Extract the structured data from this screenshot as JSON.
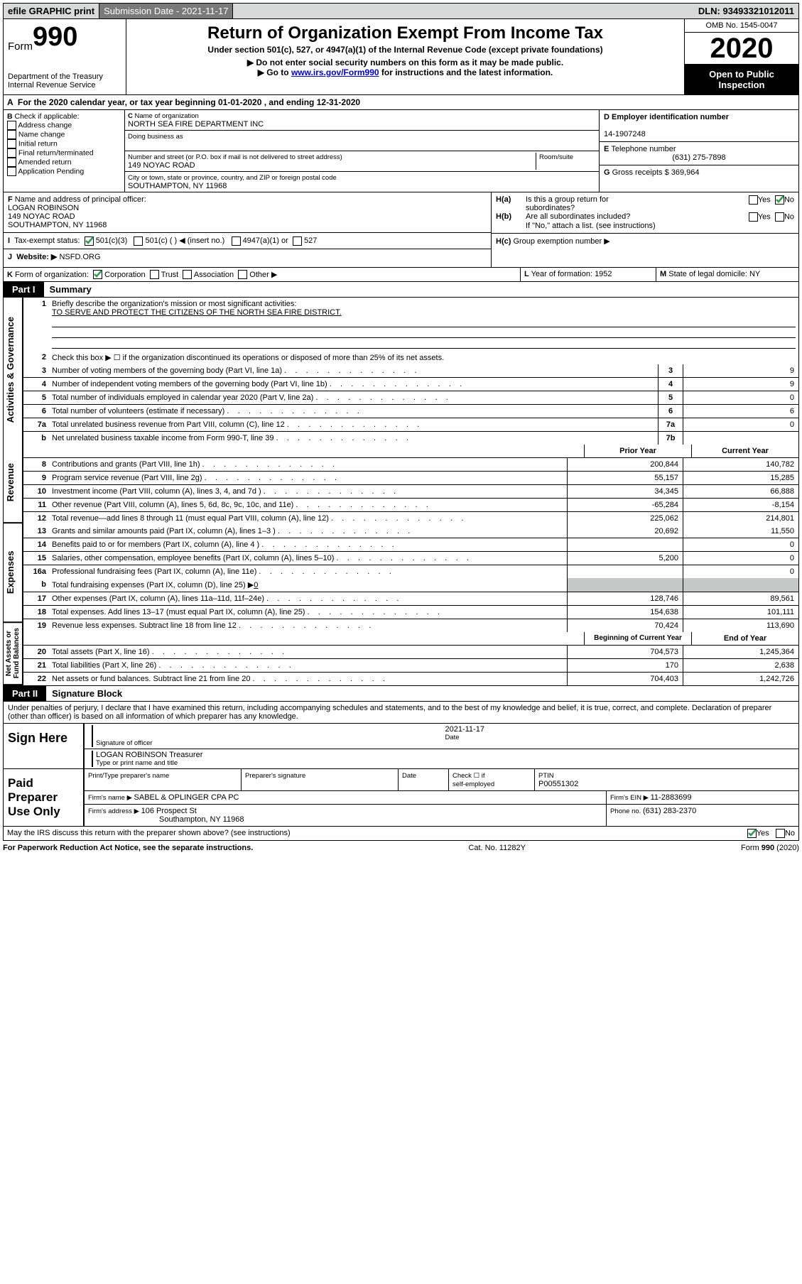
{
  "top": {
    "efile": "efile GRAPHIC print",
    "subdate_lbl": "Submission Date - ",
    "subdate": "2021-11-17",
    "dln_lbl": "DLN: ",
    "dln": "93493321012011"
  },
  "header": {
    "form_word": "Form",
    "form_num": "990",
    "dept": "Department of the Treasury",
    "irs": "Internal Revenue Service",
    "title": "Return of Organization Exempt From Income Tax",
    "sub": "Under section 501(c), 527, or 4947(a)(1) of the Internal Revenue Code (except private foundations)",
    "note1": "Do not enter social security numbers on this form as it may be made public.",
    "note2_a": "Go to ",
    "note2_link": "www.irs.gov/Form990",
    "note2_b": " for instructions and the latest information.",
    "omb": "OMB No. 1545-0047",
    "year": "2020",
    "open1": "Open to Public",
    "open2": "Inspection"
  },
  "A": "For the 2020 calendar year, or tax year beginning 01-01-2020    , and ending 12-31-2020",
  "B": {
    "lbl": "Check if applicable:",
    "opts": [
      "Address change",
      "Name change",
      "Initial return",
      "Final return/terminated",
      "Amended return",
      "Application Pending"
    ]
  },
  "C": {
    "name_lbl": "Name of organization",
    "name": "NORTH SEA FIRE DEPARTMENT INC",
    "dba_lbl": "Doing business as",
    "addr_lbl": "Number and street (or P.O. box if mail is not delivered to street address)",
    "room_lbl": "Room/suite",
    "addr": "149 NOYAC ROAD",
    "city_lbl": "City or town, state or province, country, and ZIP or foreign postal code",
    "city": "SOUTHAMPTON, NY  11968"
  },
  "D": {
    "lbl": "Employer identification number",
    "val": "14-1907248"
  },
  "E": {
    "lbl": "Telephone number",
    "val": "(631) 275-7898"
  },
  "G": {
    "lbl": "Gross receipts $ ",
    "val": "369,964"
  },
  "F": {
    "lbl": "Name and address of principal officer:",
    "name": "LOGAN ROBINSON",
    "street": "149 NOYAC ROAD",
    "city": "SOUTHAMPTON, NY  11968"
  },
  "tax_status_lbl": "Tax-exempt status:",
  "tax_status_501c3": "501(c)(3)",
  "tax_status_501c": "501(c) (  ) ",
  "tax_status_insert": "(insert no.)",
  "tax_status_4947": "4947(a)(1) or",
  "tax_status_527": "527",
  "Ha_lbl": "Is this a group return for",
  "Ha_lbl2": "subordinates?",
  "Hb_lbl": "Are all subordinates included?",
  "H_note": "If \"No,\" attach a list. (see instructions)",
  "Hc_lbl": "Group exemption number ▶",
  "J_lbl": "Website: ▶",
  "J_val": "NSFD.ORG",
  "K_lbl": "Form of organization:",
  "K_opts": [
    "Corporation",
    "Trust",
    "Association",
    "Other ▶"
  ],
  "L_lbl": "Year of formation: ",
  "L_val": "1952",
  "M_lbl": "State of legal domicile: ",
  "M_val": "NY",
  "part1": {
    "tab": "Part I",
    "title": "Summary"
  },
  "sections": {
    "gov": "Activities & Governance",
    "rev": "Revenue",
    "exp": "Expenses",
    "net": "Net Assets or Fund Balances"
  },
  "s1_lbl": "Briefly describe the organization's mission or most significant activities:",
  "s1_val": "TO SERVE AND PROTECT THE CITIZENS OF THE NORTH SEA FIRE DISTRICT.",
  "s2_lbl": "Check this box ▶ ☐  if the organization discontinued its operations or disposed of more than 25% of its net assets.",
  "rows_simple": [
    {
      "n": "3",
      "t": "Number of voting members of the governing body (Part VI, line 1a)",
      "c": "3",
      "v": "9"
    },
    {
      "n": "4",
      "t": "Number of independent voting members of the governing body (Part VI, line 1b)",
      "c": "4",
      "v": "9"
    },
    {
      "n": "5",
      "t": "Total number of individuals employed in calendar year 2020 (Part V, line 2a)",
      "c": "5",
      "v": "0"
    },
    {
      "n": "6",
      "t": "Total number of volunteers (estimate if necessary)",
      "c": "6",
      "v": "6"
    },
    {
      "n": "7a",
      "t": "Total unrelated business revenue from Part VIII, column (C), line 12",
      "c": "7a",
      "v": "0"
    },
    {
      "n": "b",
      "t": "Net unrelated business taxable income from Form 990-T, line 39",
      "c": "7b",
      "v": ""
    }
  ],
  "yearhdr": {
    "prior": "Prior Year",
    "curr": "Current Year"
  },
  "rev_rows": [
    {
      "n": "8",
      "t": "Contributions and grants (Part VIII, line 1h)",
      "p": "200,844",
      "c": "140,782"
    },
    {
      "n": "9",
      "t": "Program service revenue (Part VIII, line 2g)",
      "p": "55,157",
      "c": "15,285"
    },
    {
      "n": "10",
      "t": "Investment income (Part VIII, column (A), lines 3, 4, and 7d )",
      "p": "34,345",
      "c": "66,888"
    },
    {
      "n": "11",
      "t": "Other revenue (Part VIII, column (A), lines 5, 6d, 8c, 9c, 10c, and 11e)",
      "p": "-65,284",
      "c": "-8,154"
    },
    {
      "n": "12",
      "t": "Total revenue—add lines 8 through 11 (must equal Part VIII, column (A), line 12)",
      "p": "225,062",
      "c": "214,801"
    }
  ],
  "exp_rows": [
    {
      "n": "13",
      "t": "Grants and similar amounts paid (Part IX, column (A), lines 1–3 )",
      "p": "20,692",
      "c": "11,550"
    },
    {
      "n": "14",
      "t": "Benefits paid to or for members (Part IX, column (A), line 4 )",
      "p": "",
      "c": "0"
    },
    {
      "n": "15",
      "t": "Salaries, other compensation, employee benefits (Part IX, column (A), lines 5–10)",
      "p": "5,200",
      "c": "0"
    },
    {
      "n": "16a",
      "t": "Professional fundraising fees (Part IX, column (A), line 11e)",
      "p": "",
      "c": "0"
    }
  ],
  "exp_16b": "Total fundraising expenses (Part IX, column (D), line 25) ▶",
  "exp_16b_val": "0",
  "exp_rows2": [
    {
      "n": "17",
      "t": "Other expenses (Part IX, column (A), lines 11a–11d, 11f–24e)",
      "p": "128,746",
      "c": "89,561"
    },
    {
      "n": "18",
      "t": "Total expenses. Add lines 13–17 (must equal Part IX, column (A), line 25)",
      "p": "154,638",
      "c": "101,111"
    },
    {
      "n": "19",
      "t": "Revenue less expenses. Subtract line 18 from line 12",
      "p": "70,424",
      "c": "113,690"
    }
  ],
  "nethdr": {
    "beg": "Beginning of Current Year",
    "end": "End of Year"
  },
  "net_rows": [
    {
      "n": "20",
      "t": "Total assets (Part X, line 16)",
      "p": "704,573",
      "c": "1,245,364"
    },
    {
      "n": "21",
      "t": "Total liabilities (Part X, line 26)",
      "p": "170",
      "c": "2,638"
    },
    {
      "n": "22",
      "t": "Net assets or fund balances. Subtract line 21 from line 20",
      "p": "704,403",
      "c": "1,242,726"
    }
  ],
  "part2": {
    "tab": "Part II",
    "title": "Signature Block"
  },
  "perjury": "Under penalties of perjury, I declare that I have examined this return, including accompanying schedules and statements, and to the best of my knowledge and belief, it is true, correct, and complete. Declaration of preparer (other than officer) is based on all information of which preparer has any knowledge.",
  "sign": {
    "here": "Sign Here",
    "sig_officer": "Signature of officer",
    "date_lbl": "Date",
    "date": "2021-11-17",
    "name": "LOGAN ROBINSON  Treasurer",
    "name_lbl": "Type or print name and title"
  },
  "paid": {
    "title": "Paid Preparer Use Only",
    "h1": "Print/Type preparer's name",
    "h2": "Preparer's signature",
    "h3": "Date",
    "h4a": "Check ☐ if",
    "h4b": "self-employed",
    "h5_lbl": "PTIN",
    "h5": "P00551302",
    "firm_name_lbl": "Firm's name    ▶ ",
    "firm_name": "SABEL & OPLINGER CPA PC",
    "firm_ein_lbl": "Firm's EIN ▶ ",
    "firm_ein": "11-2883699",
    "firm_addr_lbl": "Firm's address ▶ ",
    "firm_addr1": "106 Prospect St",
    "firm_addr2": "Southampton, NY  11968",
    "phone_lbl": "Phone no. ",
    "phone": "(631) 283-2370"
  },
  "discuss": "May the IRS discuss this return with the preparer shown above? (see instructions)",
  "footer": {
    "pra": "For Paperwork Reduction Act Notice, see the separate instructions.",
    "cat": "Cat. No. 11282Y",
    "form": "Form 990 (2020)"
  },
  "yes": "Yes",
  "no": "No",
  "colors": {
    "topbar_bg": "#d8dad9",
    "btn_bg": "#7a7a7a",
    "black": "#000000",
    "white": "#ffffff",
    "link": "#0000cc",
    "grey_cell": "#c6c7c7",
    "check_green": "#2e9e4a"
  }
}
